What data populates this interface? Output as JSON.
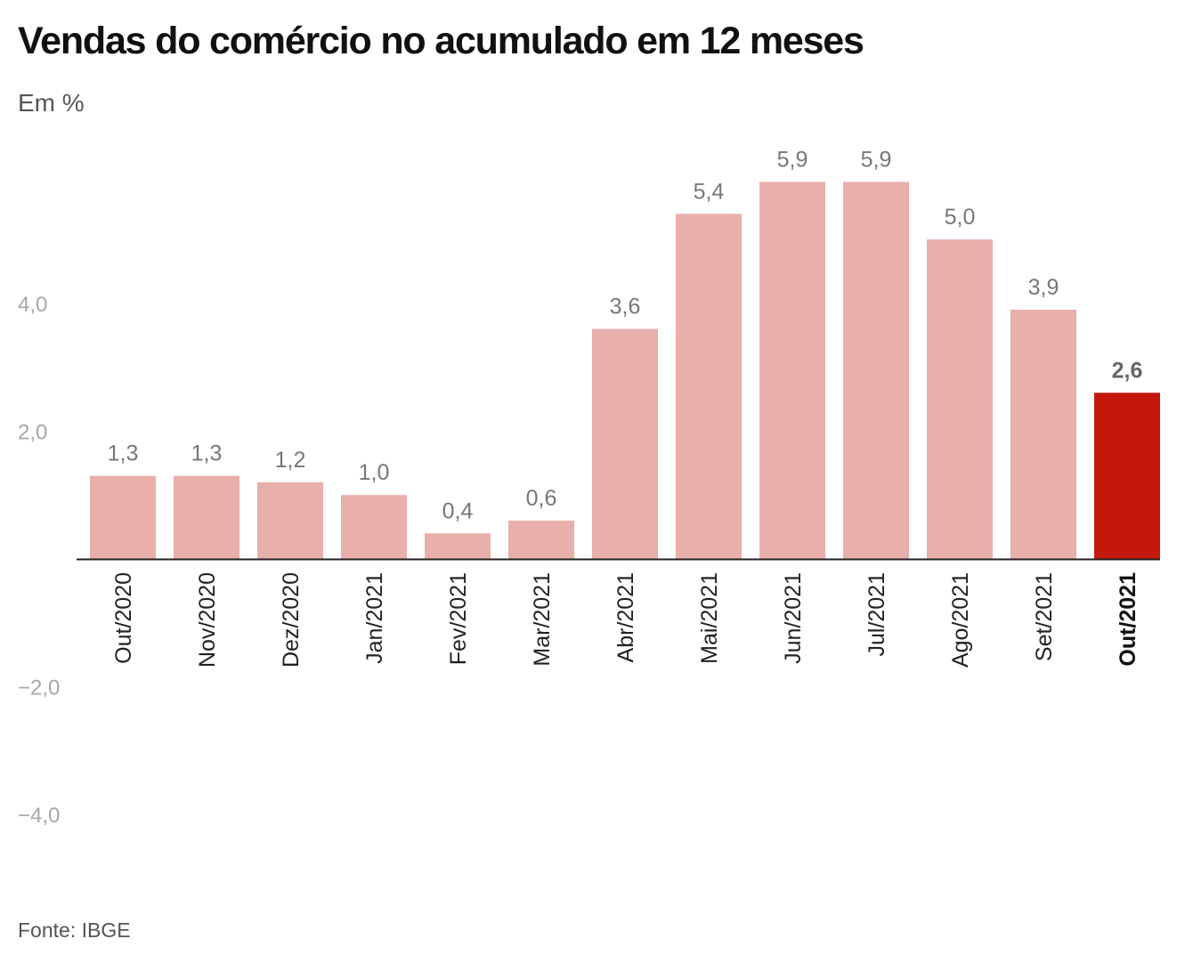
{
  "header": {
    "title": "Vendas do comércio no acumulado em 12 meses",
    "subtitle": "Em %"
  },
  "footer": {
    "source": "Fonte: IBGE"
  },
  "colors": {
    "bar": "#e8afab",
    "highlight": "#c4180c",
    "axis": "#222222"
  },
  "chart_data": {
    "type": "bar",
    "title": "Vendas do comércio no acumulado em 12 meses",
    "ylabel": "Em %",
    "xlabel": "",
    "ylim": [
      -4.0,
      6.0
    ],
    "yticks": [
      4.0,
      2.0,
      -2.0,
      -4.0
    ],
    "ytick_labels": [
      "4,0",
      "2,0",
      "−2,0",
      "−4,0"
    ],
    "grid": false,
    "categories": [
      "Out/2020",
      "Nov/2020",
      "Dez/2020",
      "Jan/2021",
      "Fev/2021",
      "Mar/2021",
      "Abr/2021",
      "Mai/2021",
      "Jun/2021",
      "Jul/2021",
      "Ago/2021",
      "Set/2021",
      "Out/2021"
    ],
    "values": [
      1.3,
      1.3,
      1.2,
      1.0,
      0.4,
      0.6,
      3.6,
      5.4,
      5.9,
      5.9,
      5.0,
      3.9,
      2.6
    ],
    "value_labels": [
      "1,3",
      "1,3",
      "1,2",
      "1,0",
      "0,4",
      "0,6",
      "3,6",
      "5,4",
      "5,9",
      "5,9",
      "5,0",
      "3,9",
      "2,6"
    ],
    "highlight_category": "Out/2021"
  }
}
